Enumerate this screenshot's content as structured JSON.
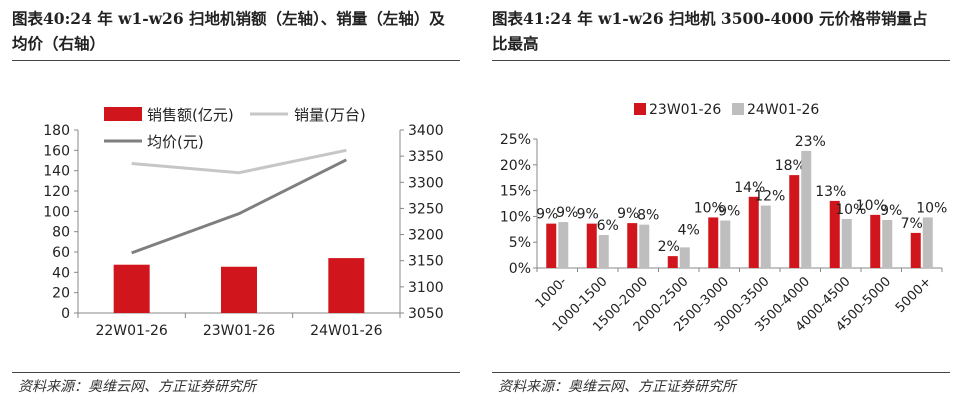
{
  "colors": {
    "red": "#D0151C",
    "gray": "#BEBEBE",
    "line_light": "#C6C6C6",
    "line_dark": "#7F7F7F",
    "axis": "#888888"
  },
  "left": {
    "title": "图表40:24 年 w1-w26 扫地机销额（左轴）、销量（左轴）及均价（右轴）",
    "source": "资料来源：奥维云网、方正证券研究所"
  },
  "right": {
    "title": "图表41:24 年 w1-w26 扫地机 3500-4000 元价格带销量占比最高",
    "source": "资料来源：奥维云网、方正证券研究所"
  },
  "chart_data": [
    {
      "type": "bar",
      "title": "图表40:24 年 w1-w26 扫地机销额（左轴）、销量（左轴）及均价（右轴）",
      "categories": [
        "22W01-26",
        "23W01-26",
        "24W01-26"
      ],
      "series": [
        {
          "name": "销售额(亿元)",
          "kind": "bar",
          "axis": "left",
          "values": [
            47.5,
            45.5,
            54
          ]
        },
        {
          "name": "销量(万台)",
          "kind": "line",
          "axis": "left",
          "values": [
            147,
            138,
            160
          ]
        },
        {
          "name": "均价(元)",
          "kind": "line",
          "axis": "right",
          "values": [
            3165,
            3240,
            3343
          ]
        }
      ],
      "left_axis": {
        "min": 0,
        "max": 180,
        "step": 20,
        "ticks": [
          "0",
          "20",
          "40",
          "60",
          "80",
          "100",
          "120",
          "140",
          "160",
          "180"
        ]
      },
      "right_axis": {
        "min": 3050,
        "max": 3400,
        "step": 50,
        "ticks": [
          "3050",
          "3100",
          "3150",
          "3200",
          "3250",
          "3300",
          "3350",
          "3400"
        ]
      },
      "legend_position": "top-left"
    },
    {
      "type": "bar",
      "title": "图表41:24 年 w1-w26 扫地机 3500-4000 元价格带销量占比最高",
      "categories": [
        "1000-",
        "1000-1500",
        "1500-2000",
        "2000-2500",
        "2500-3000",
        "3000-3500",
        "3500-4000",
        "4000-4500",
        "4500-5000",
        "5000+"
      ],
      "series": [
        {
          "name": "23W01-26",
          "values": [
            8.6,
            8.6,
            8.7,
            2.3,
            9.8,
            13.8,
            18.0,
            13.0,
            10.3,
            6.8
          ],
          "labels": [
            "9%",
            "9%",
            "9%",
            "2%",
            "10%",
            "14%",
            "18%",
            "13%",
            "10%",
            "7%"
          ]
        },
        {
          "name": "24W01-26",
          "values": [
            8.9,
            6.4,
            8.4,
            4.0,
            9.2,
            12.1,
            22.7,
            9.5,
            9.3,
            9.8
          ],
          "labels": [
            "9%",
            "6%",
            "8%",
            "4%",
            "9%",
            "12%",
            "23%",
            "10%",
            "9%",
            "10%"
          ]
        }
      ],
      "y_axis": {
        "min": 0,
        "max": 25,
        "step": 5,
        "ticks": [
          "0%",
          "5%",
          "10%",
          "15%",
          "20%",
          "25%"
        ]
      },
      "legend_position": "top-center"
    }
  ]
}
